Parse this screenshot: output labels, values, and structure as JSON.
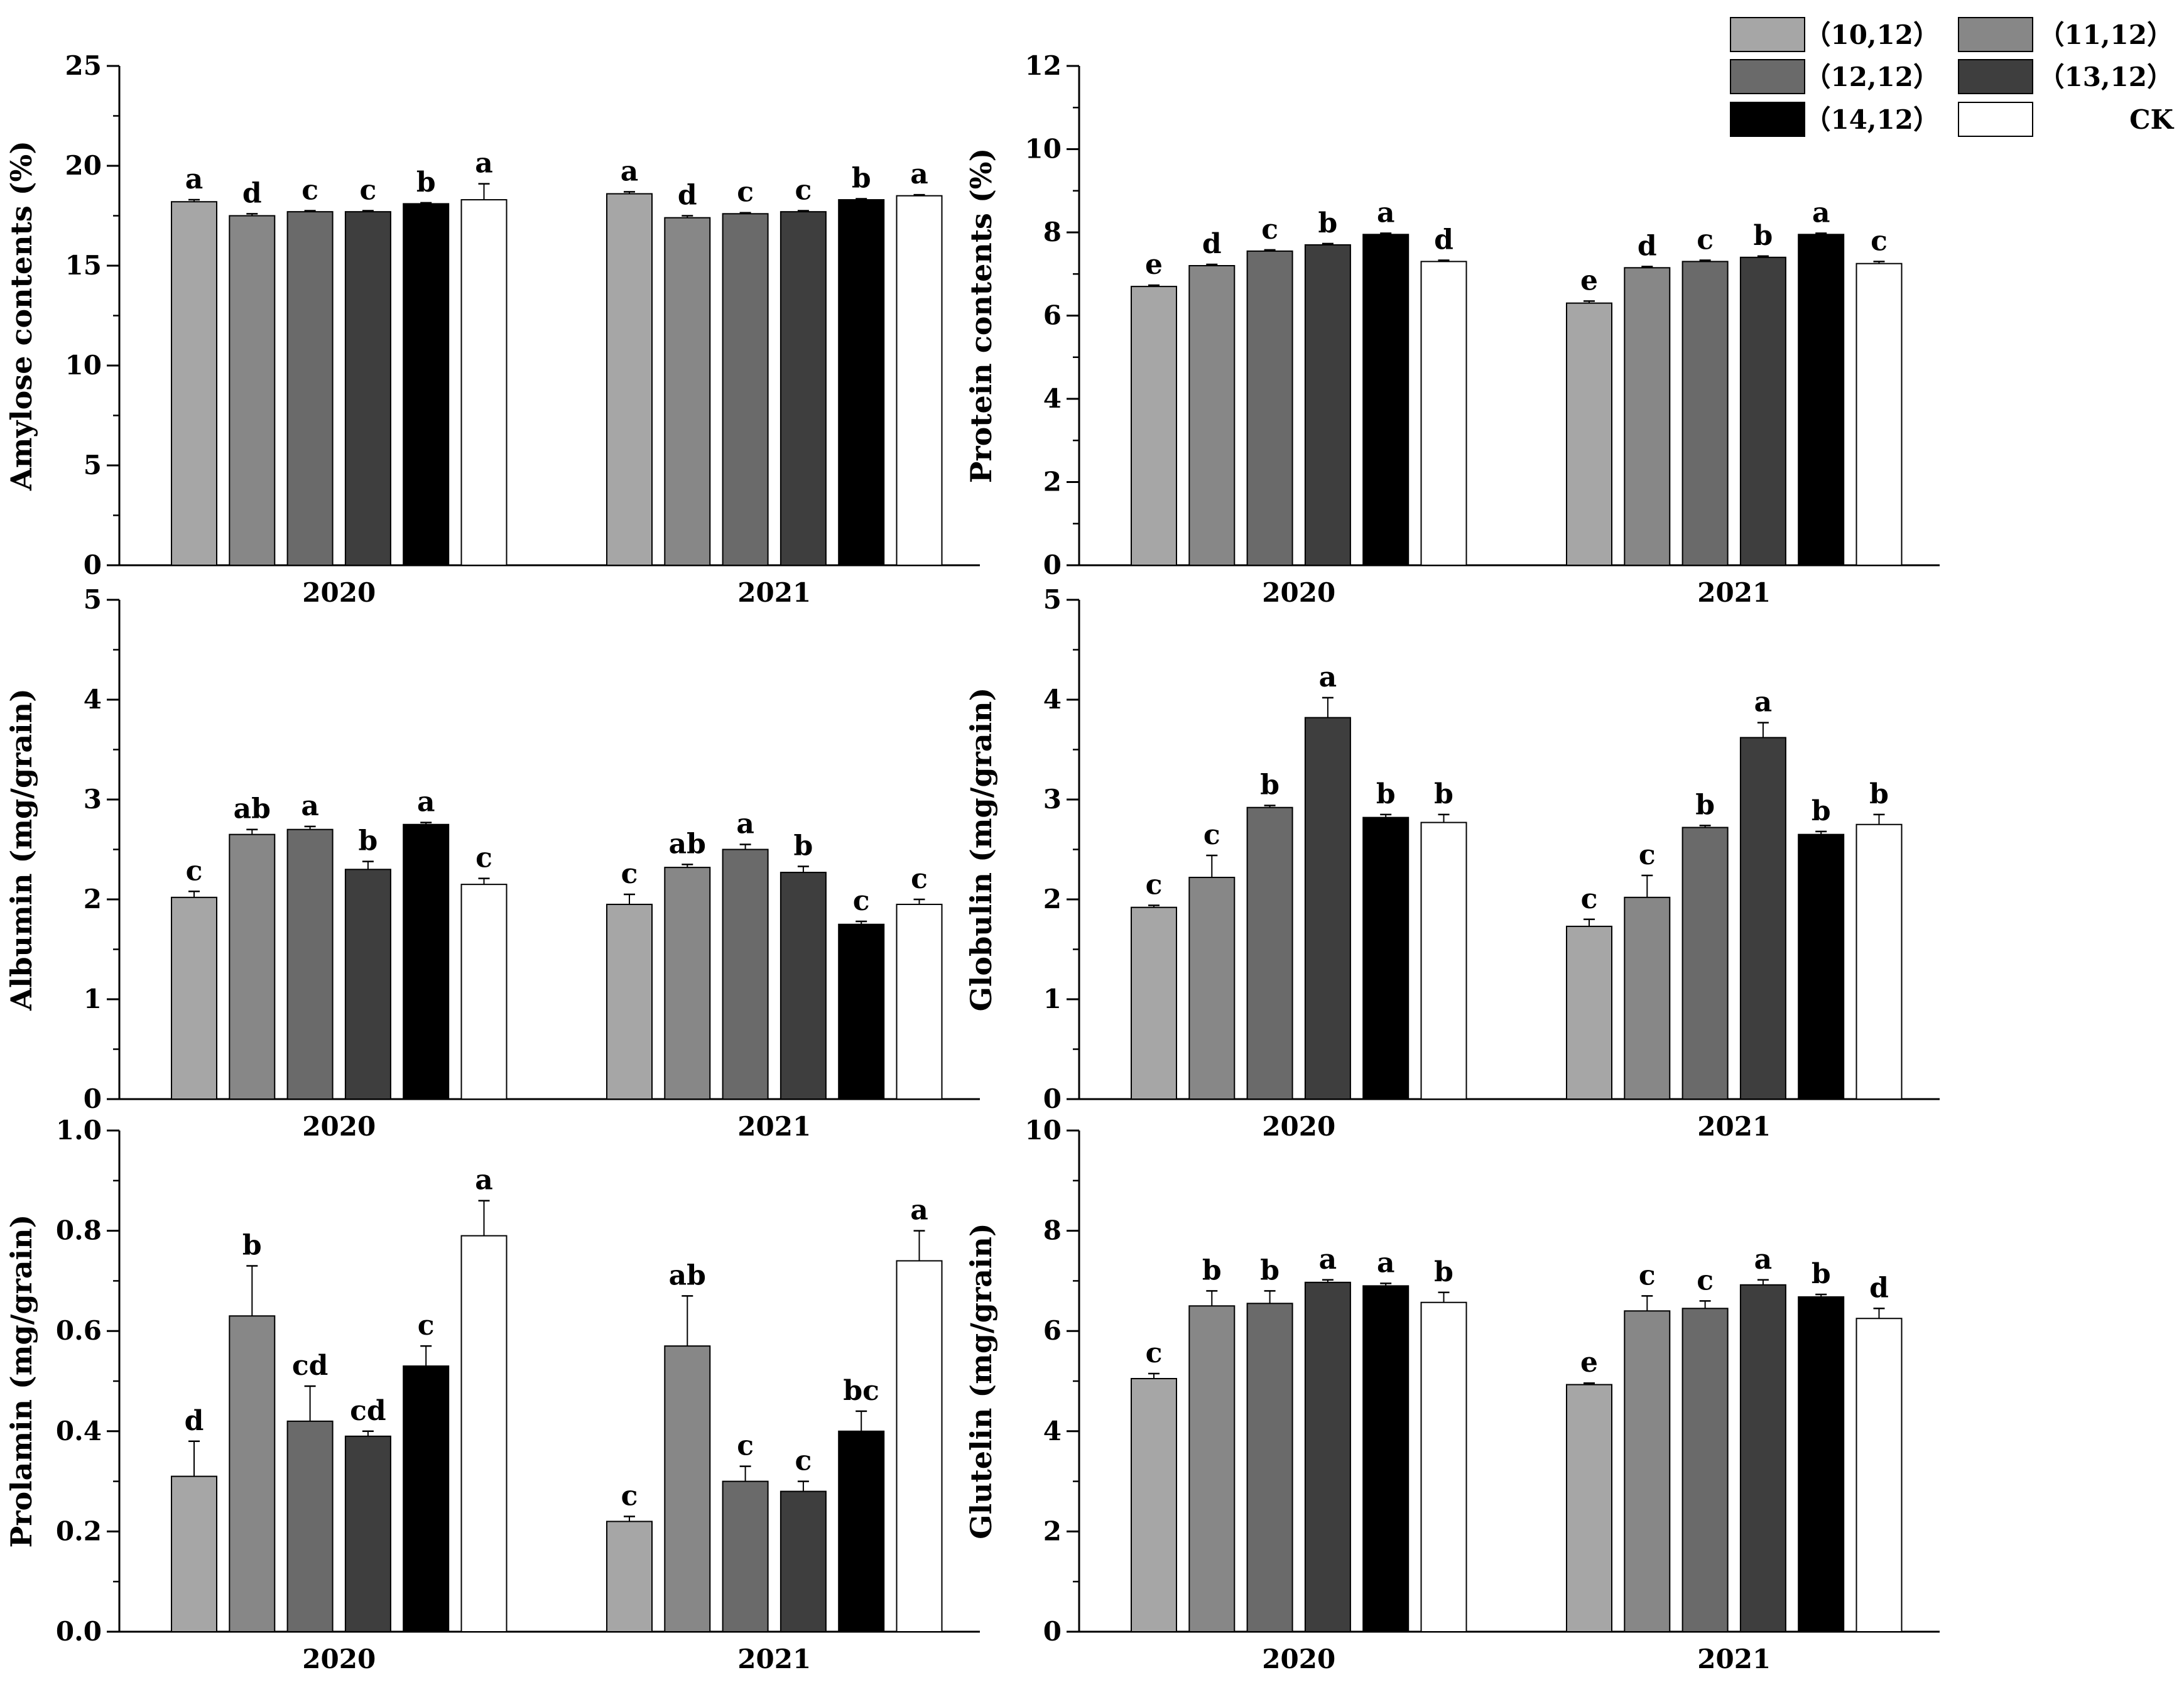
{
  "legend": [
    {
      "label": "（10,12）",
      "color": "#a6a6a6"
    },
    {
      "label": "（11,12）",
      "color": "#878787"
    },
    {
      "label": "（12,12）",
      "color": "#6a6a6a"
    },
    {
      "label": "（13,12）",
      "color": "#3e3e3e"
    },
    {
      "label": "（14,12）",
      "color": "#000000"
    },
    {
      "label": "CK",
      "color": "#ffffff"
    }
  ],
  "chart_data": [
    {
      "type": "bar",
      "ylabel": "Amylose contents (%)",
      "ylim": [
        0,
        25
      ],
      "yticks": [
        "0",
        "5",
        "10",
        "15",
        "20",
        "25"
      ],
      "ytick_values": [
        0,
        5,
        10,
        15,
        20,
        25
      ],
      "minor_step": 2.5,
      "categories": [
        "2020",
        "2021"
      ],
      "series_names": [
        "（10,12）",
        "（11,12）",
        "（12,12）",
        "（13,12）",
        "（14,12）",
        "CK"
      ],
      "values": [
        [
          18.2,
          17.5,
          17.7,
          17.7,
          18.1,
          18.3
        ],
        [
          18.6,
          17.4,
          17.6,
          17.7,
          18.3,
          18.5
        ]
      ],
      "errors": [
        [
          0.1,
          0.1,
          0.05,
          0.05,
          0.05,
          0.8
        ],
        [
          0.1,
          0.1,
          0.05,
          0.05,
          0.05,
          0.05
        ]
      ],
      "letters": [
        [
          "a",
          "d",
          "c",
          "c",
          "b",
          "a"
        ],
        [
          "a",
          "d",
          "c",
          "c",
          "b",
          "a"
        ]
      ]
    },
    {
      "type": "bar",
      "ylabel": "Protein contents (%)",
      "ylim": [
        0,
        12
      ],
      "yticks": [
        "0",
        "2",
        "4",
        "6",
        "8",
        "10",
        "12"
      ],
      "ytick_values": [
        0,
        2,
        4,
        6,
        8,
        10,
        12
      ],
      "minor_step": 1,
      "categories": [
        "2020",
        "2021"
      ],
      "series_names": [
        "（10,12）",
        "（11,12）",
        "（12,12）",
        "（13,12）",
        "（14,12）",
        "CK"
      ],
      "values": [
        [
          6.7,
          7.2,
          7.55,
          7.7,
          7.95,
          7.3
        ],
        [
          6.3,
          7.15,
          7.3,
          7.4,
          7.95,
          7.25
        ]
      ],
      "errors": [
        [
          0.03,
          0.03,
          0.03,
          0.03,
          0.03,
          0.03
        ],
        [
          0.05,
          0.03,
          0.03,
          0.03,
          0.03,
          0.05
        ]
      ],
      "letters": [
        [
          "e",
          "d",
          "c",
          "b",
          "a",
          "d"
        ],
        [
          "e",
          "d",
          "c",
          "b",
          "a",
          "c"
        ]
      ]
    },
    {
      "type": "bar",
      "ylabel": "Albumin (mg/grain)",
      "ylim": [
        0,
        5
      ],
      "yticks": [
        "0",
        "1",
        "2",
        "3",
        "4",
        "5"
      ],
      "ytick_values": [
        0,
        1,
        2,
        3,
        4,
        5
      ],
      "minor_step": 0.5,
      "categories": [
        "2020",
        "2021"
      ],
      "series_names": [
        "（10,12）",
        "（11,12）",
        "（12,12）",
        "（13,12）",
        "（14,12）",
        "CK"
      ],
      "values": [
        [
          2.02,
          2.65,
          2.7,
          2.3,
          2.75,
          2.15
        ],
        [
          1.95,
          2.32,
          2.5,
          2.27,
          1.75,
          1.95
        ]
      ],
      "errors": [
        [
          0.06,
          0.05,
          0.03,
          0.08,
          0.02,
          0.06
        ],
        [
          0.1,
          0.03,
          0.05,
          0.06,
          0.03,
          0.05
        ]
      ],
      "letters": [
        [
          "c",
          "ab",
          "a",
          "b",
          "a",
          "c"
        ],
        [
          "c",
          "ab",
          "a",
          "b",
          "c",
          "c"
        ]
      ]
    },
    {
      "type": "bar",
      "ylabel": "Globulin (mg/grain)",
      "ylim": [
        0,
        5
      ],
      "yticks": [
        "0",
        "1",
        "2",
        "3",
        "4",
        "5"
      ],
      "ytick_values": [
        0,
        1,
        2,
        3,
        4,
        5
      ],
      "minor_step": 0.5,
      "categories": [
        "2020",
        "2021"
      ],
      "series_names": [
        "（10,12）",
        "（11,12）",
        "（12,12）",
        "（13,12）",
        "（14,12）",
        "CK"
      ],
      "values": [
        [
          1.92,
          2.22,
          2.92,
          3.82,
          2.82,
          2.77
        ],
        [
          1.73,
          2.02,
          2.72,
          3.62,
          2.65,
          2.75
        ]
      ],
      "errors": [
        [
          0.02,
          0.22,
          0.02,
          0.2,
          0.03,
          0.08
        ],
        [
          0.07,
          0.22,
          0.02,
          0.15,
          0.03,
          0.1
        ]
      ],
      "letters": [
        [
          "c",
          "c",
          "b",
          "a",
          "b",
          "b"
        ],
        [
          "c",
          "c",
          "b",
          "a",
          "b",
          "b"
        ]
      ]
    },
    {
      "type": "bar",
      "ylabel": "Prolamin (mg/grain)",
      "ylim": [
        0,
        1.0
      ],
      "yticks": [
        "0.0",
        "0.2",
        "0.4",
        "0.6",
        "0.8",
        "1.0"
      ],
      "ytick_values": [
        0,
        0.2,
        0.4,
        0.6,
        0.8,
        1.0
      ],
      "minor_step": 0.1,
      "categories": [
        "2020",
        "2021"
      ],
      "series_names": [
        "（10,12）",
        "（11,12）",
        "（12,12）",
        "（13,12）",
        "（14,12）",
        "CK"
      ],
      "values": [
        [
          0.31,
          0.63,
          0.42,
          0.39,
          0.53,
          0.79
        ],
        [
          0.22,
          0.57,
          0.3,
          0.28,
          0.4,
          0.74
        ]
      ],
      "errors": [
        [
          0.07,
          0.1,
          0.07,
          0.01,
          0.04,
          0.07
        ],
        [
          0.01,
          0.1,
          0.03,
          0.02,
          0.04,
          0.06
        ]
      ],
      "letters": [
        [
          "d",
          "b",
          "cd",
          "cd",
          "c",
          "a"
        ],
        [
          "c",
          "ab",
          "c",
          "c",
          "bc",
          "a"
        ]
      ]
    },
    {
      "type": "bar",
      "ylabel": "Glutelin (mg/grain)",
      "ylim": [
        0,
        10
      ],
      "yticks": [
        "0",
        "2",
        "4",
        "6",
        "8",
        "10"
      ],
      "ytick_values": [
        0,
        2,
        4,
        6,
        8,
        10
      ],
      "minor_step": 1,
      "categories": [
        "2020",
        "2021"
      ],
      "series_names": [
        "（10,12）",
        "（11,12）",
        "（12,12）",
        "（13,12）",
        "（14,12）",
        "CK"
      ],
      "values": [
        [
          5.05,
          6.5,
          6.55,
          6.97,
          6.9,
          6.57
        ],
        [
          4.93,
          6.4,
          6.45,
          6.92,
          6.68,
          6.25
        ]
      ],
      "errors": [
        [
          0.1,
          0.3,
          0.25,
          0.05,
          0.05,
          0.2
        ],
        [
          0.03,
          0.3,
          0.15,
          0.1,
          0.05,
          0.2
        ]
      ],
      "letters": [
        [
          "c",
          "b",
          "b",
          "a",
          "a",
          "b"
        ],
        [
          "e",
          "c",
          "c",
          "a",
          "b",
          "d"
        ]
      ]
    }
  ]
}
